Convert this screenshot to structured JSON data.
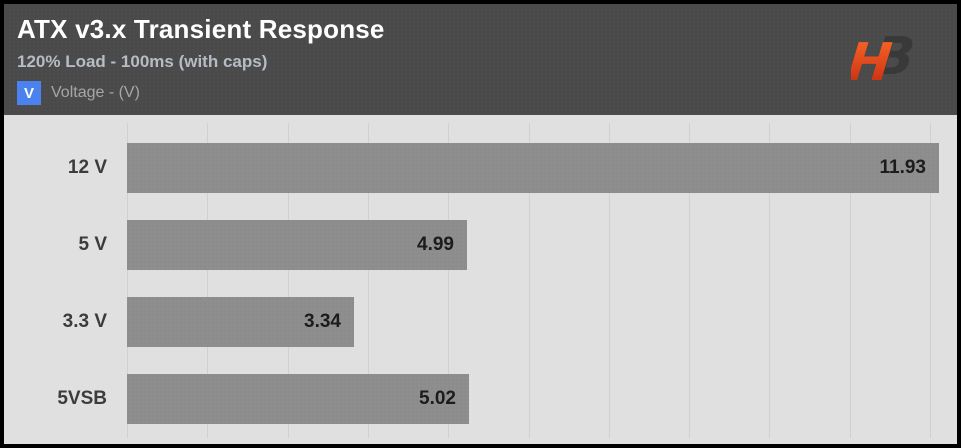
{
  "header": {
    "title": "ATX v3.x Transient Response",
    "subtitle": "120% Load - 100ms (with caps)",
    "legend": {
      "swatch_letter": "V",
      "swatch_color": "#4b82ef",
      "label": "Voltage - (V)"
    },
    "logo": {
      "h": "H",
      "b": "B",
      "h_top": "#ff6a2a",
      "h_bottom": "#c0270c",
      "b_color": "#393939"
    }
  },
  "colors": {
    "frame_border": "#000000",
    "header_bg": "#4a4a4a",
    "title_text": "#ffffff",
    "subtitle_text": "#b6bcc4",
    "chart_bg": "#e0e0e0",
    "bar": "#8e8e8e",
    "value_text": "#1c1c1c",
    "category_text": "#3c3c3c"
  },
  "chart_data": {
    "type": "bar",
    "orientation": "horizontal",
    "title": "ATX v3.x Transient Response",
    "subtitle": "120% Load - 100ms (with caps)",
    "legend": [
      "Voltage - (V)"
    ],
    "categories": [
      "12 V",
      "5 V",
      "3.3 V",
      "5VSB"
    ],
    "values": [
      11.93,
      4.99,
      3.34,
      5.02
    ],
    "value_labels": [
      "11.93",
      "4.99",
      "3.34",
      "5.02"
    ],
    "xlim": [
      0,
      12
    ],
    "grid": "vertical",
    "grid_intervals": 10,
    "value_labels_position": "inside-end",
    "bar_color": "#8e8e8e"
  }
}
